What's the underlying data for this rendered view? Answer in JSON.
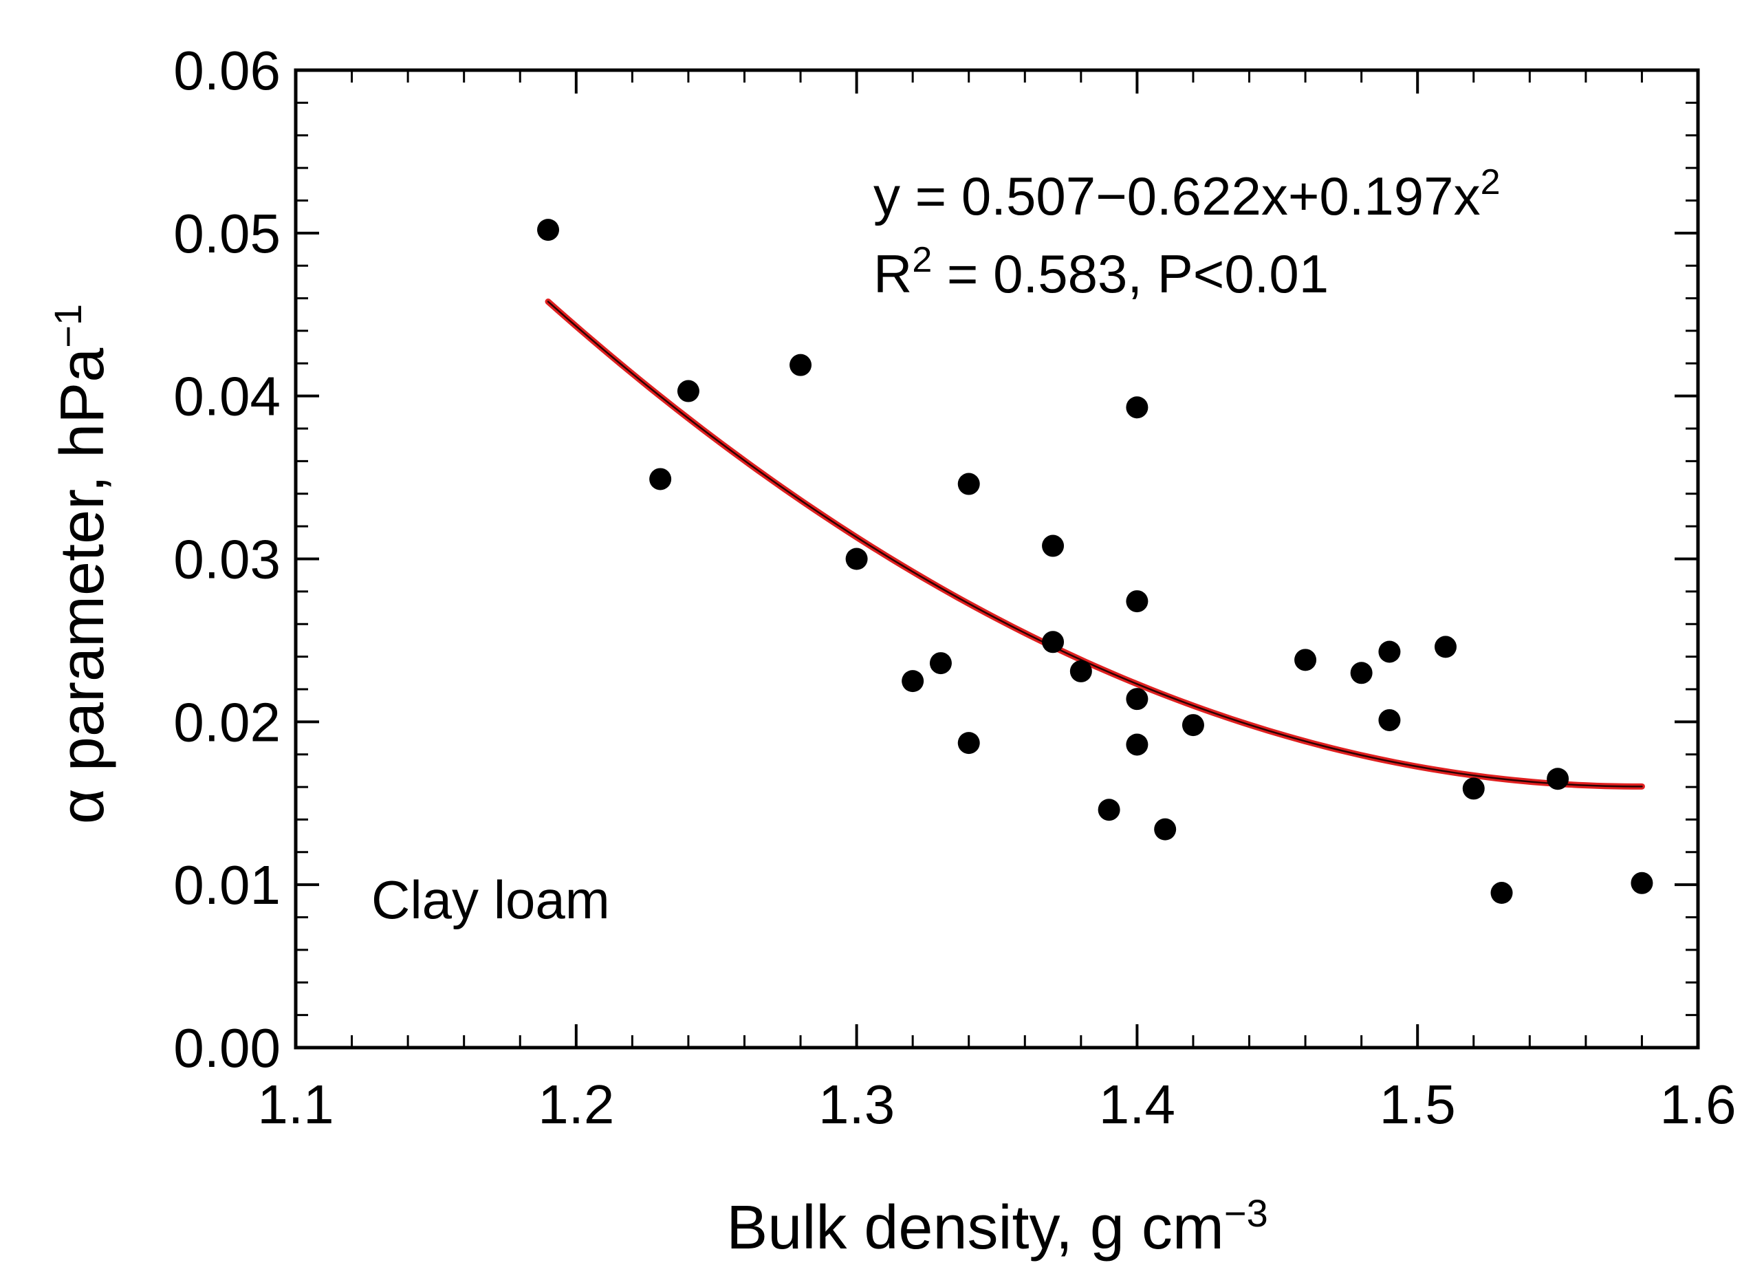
{
  "chart_data": {
    "type": "scatter",
    "xlabel_main": "Bulk density, g cm",
    "xlabel_sup": "−3",
    "ylabel_main": "α parameter, hPa",
    "ylabel_sup": "−1",
    "xlim": [
      1.1,
      1.6
    ],
    "ylim": [
      0.0,
      0.06
    ],
    "xticks": [
      1.1,
      1.2,
      1.3,
      1.4,
      1.5,
      1.6
    ],
    "xtick_labels": [
      "1.1",
      "1.2",
      "1.3",
      "1.4",
      "1.5",
      "1.6"
    ],
    "yticks": [
      0.0,
      0.01,
      0.02,
      0.03,
      0.04,
      0.05,
      0.06
    ],
    "ytick_labels": [
      "0.00",
      "0.01",
      "0.02",
      "0.03",
      "0.04",
      "0.05",
      "0.06"
    ],
    "x_minor_step": 0.02,
    "y_minor_step": 0.002,
    "grid": false,
    "series": [
      {
        "name": "Clay loam",
        "kind": "scatter",
        "color": "#000000",
        "points": [
          {
            "x": 1.19,
            "y": 0.0502
          },
          {
            "x": 1.23,
            "y": 0.0349
          },
          {
            "x": 1.24,
            "y": 0.0403
          },
          {
            "x": 1.28,
            "y": 0.0419
          },
          {
            "x": 1.3,
            "y": 0.03
          },
          {
            "x": 1.32,
            "y": 0.0225
          },
          {
            "x": 1.33,
            "y": 0.0236
          },
          {
            "x": 1.34,
            "y": 0.0346
          },
          {
            "x": 1.34,
            "y": 0.0187
          },
          {
            "x": 1.37,
            "y": 0.0308
          },
          {
            "x": 1.37,
            "y": 0.0249
          },
          {
            "x": 1.38,
            "y": 0.0231
          },
          {
            "x": 1.39,
            "y": 0.0146
          },
          {
            "x": 1.4,
            "y": 0.0393
          },
          {
            "x": 1.4,
            "y": 0.0274
          },
          {
            "x": 1.4,
            "y": 0.0214
          },
          {
            "x": 1.4,
            "y": 0.0186
          },
          {
            "x": 1.41,
            "y": 0.0134
          },
          {
            "x": 1.42,
            "y": 0.0198
          },
          {
            "x": 1.46,
            "y": 0.0238
          },
          {
            "x": 1.48,
            "y": 0.023
          },
          {
            "x": 1.49,
            "y": 0.0243
          },
          {
            "x": 1.49,
            "y": 0.0201
          },
          {
            "x": 1.51,
            "y": 0.0246
          },
          {
            "x": 1.52,
            "y": 0.0159
          },
          {
            "x": 1.53,
            "y": 0.0095
          },
          {
            "x": 1.55,
            "y": 0.0165
          },
          {
            "x": 1.58,
            "y": 0.0101
          }
        ]
      },
      {
        "name": "Quadratic fit",
        "kind": "curve",
        "color": "#e02020",
        "equation": {
          "a": 0.507,
          "b": -0.622,
          "c": 0.197
        },
        "x_range": [
          1.19,
          1.58
        ]
      }
    ],
    "annotations": {
      "equation_text": "y = 0.507−0.622x+0.197x",
      "equation_sup": "2",
      "r2_prefix": "R",
      "r2_sup": "2",
      "r2_text": " = 0.583, P<0.01",
      "soil_label": "Clay loam"
    }
  }
}
